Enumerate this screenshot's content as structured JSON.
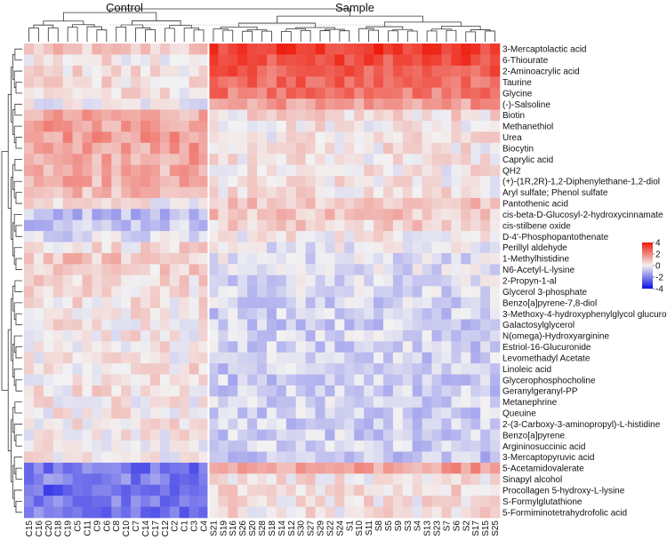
{
  "chart_data": {
    "type": "heatmap",
    "title": "",
    "group_labels": [
      "Control",
      "Sample"
    ],
    "columns": [
      "C15",
      "C16",
      "C20",
      "C18",
      "C19",
      "C5",
      "C11",
      "C9",
      "C6",
      "C8",
      "C10",
      "C7",
      "C14",
      "C17",
      "C12",
      "C2",
      "C1",
      "C3",
      "C4",
      "S21",
      "S19",
      "S16",
      "S26",
      "S20",
      "S28",
      "S18",
      "S14",
      "S12",
      "S30",
      "S27",
      "S29",
      "S22",
      "S24",
      "S1",
      "S10",
      "S11",
      "S8",
      "S5",
      "S9",
      "S3",
      "S4",
      "S13",
      "S23",
      "S7",
      "S6",
      "S2",
      "S17",
      "S15",
      "S25"
    ],
    "control_columns": 19,
    "rows": [
      "3-Mercaptolactic acid",
      "6-Thiourate",
      "2-Aminoacrylic acid",
      "Taurine",
      "Glycine",
      "(-)-Salsoline",
      "Biotin",
      "Methanethiol",
      "Urea",
      "Biocytin",
      "Caprylic acid",
      "QH2",
      "(+)-(1R,2R)-1,2-Diphenylethane-1,2-diol",
      "Aryl sulfate; Phenol sulfate",
      "Pantothenic acid",
      "cis-beta-D-Glucosyl-2-hydroxycinnamate",
      "cis-stilbene oxide",
      "D-4'-Phosphopantothenate",
      "Perillyl aldehyde",
      "1-Methylhistidine",
      "N6-Acetyl-L-lysine",
      "2-Propyn-1-al",
      "Glycerol 3-phosphate",
      "Benzo[a]pyrene-7,8-diol",
      "3-Methoxy-4-hydroxyphenylglycol glucuronide",
      "Galactosylglycerol",
      "N(omega)-Hydroxyarginine",
      "Estriol-16-Glucuronide",
      "Levomethadyl Acetate",
      "Linoleic acid",
      "Glycerophosphocholine",
      "Geranylgeranyl-PP",
      "Metanephrine",
      "Queuine",
      "2-(3-Carboxy-3-aminopropyl)-L-histidine",
      "Benzo[a]pyrene",
      "Argininosuccinic acid",
      "3-Mercaptopyruvic acid",
      "5-Acetamidovalerate",
      "Sinapyl alcohol",
      "Procollagen 5-hydroxy-L-lysine",
      "S-Formylglutathione",
      "5-Formiminotetrahydrofolic acid"
    ],
    "row_means": [
      [
        0.7,
        3.3
      ],
      [
        0.3,
        3.0
      ],
      [
        0.4,
        2.7
      ],
      [
        0.5,
        2.5
      ],
      [
        0.3,
        2.2
      ],
      [
        -0.1,
        1.6
      ],
      [
        1.3,
        0.4
      ],
      [
        1.5,
        0.3
      ],
      [
        1.6,
        0.2
      ],
      [
        1.5,
        0.3
      ],
      [
        1.4,
        0.3
      ],
      [
        1.2,
        0.2
      ],
      [
        1.2,
        0.2
      ],
      [
        1.0,
        0.3
      ],
      [
        0.2,
        0.9
      ],
      [
        -0.9,
        0.9
      ],
      [
        -0.7,
        0.6
      ],
      [
        -0.4,
        0.2
      ],
      [
        0.4,
        -0.2
      ],
      [
        0.8,
        -0.3
      ],
      [
        0.6,
        -0.3
      ],
      [
        0.5,
        -0.4
      ],
      [
        0.4,
        -0.5
      ],
      [
        0.3,
        -0.5
      ],
      [
        0.3,
        -0.6
      ],
      [
        0.3,
        -0.6
      ],
      [
        0.2,
        -0.6
      ],
      [
        0.2,
        -0.6
      ],
      [
        0.2,
        -0.6
      ],
      [
        0.3,
        -0.7
      ],
      [
        0.3,
        -0.7
      ],
      [
        0.3,
        -0.6
      ],
      [
        0.2,
        -0.6
      ],
      [
        0.2,
        -0.6
      ],
      [
        0.3,
        -0.7
      ],
      [
        0.2,
        -0.6
      ],
      [
        0.2,
        -0.6
      ],
      [
        0.1,
        -0.8
      ],
      [
        -2.2,
        1.5
      ],
      [
        -2.0,
        0.3
      ],
      [
        -2.5,
        0.5
      ],
      [
        -2.0,
        0.3
      ],
      [
        -2.2,
        0.3
      ]
    ],
    "color_scale": {
      "min": -4,
      "max": 4,
      "low": "#1010e6",
      "mid": "#f2f2f2",
      "high": "#ee1a0a"
    },
    "legend": {
      "ticks": [
        4,
        2,
        0,
        -2,
        -4
      ],
      "placement": "right"
    }
  }
}
